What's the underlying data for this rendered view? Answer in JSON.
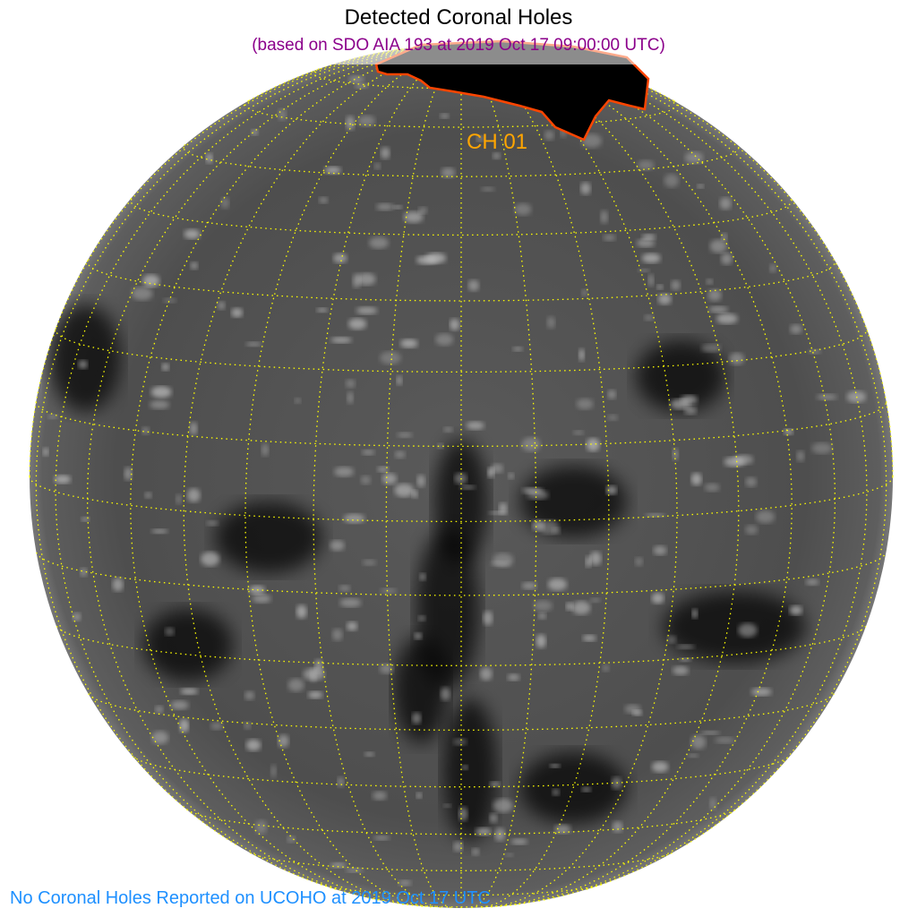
{
  "header": {
    "title": "Detected Coronal Holes",
    "subtitle": "(based on SDO AIA 193 at 2019 Oct 17 09:00:00 UTC)"
  },
  "image": {
    "description_kind": "solar-disk-euv",
    "grid": "heliographic latitude/longitude, 10 degree spacing, dotted"
  },
  "coronal_holes": [
    {
      "label": "CH 01"
    }
  ],
  "footer": {
    "text": "No Coronal Holes Reported on UCOHO at 2019 Oct 17 UTC"
  },
  "colors": {
    "title": "#000000",
    "subtitle": "#8b008b",
    "ch_label": "#ffa500",
    "ch_outline": "#ff4500",
    "grid": "#ffff00",
    "footer": "#1e90ff"
  }
}
